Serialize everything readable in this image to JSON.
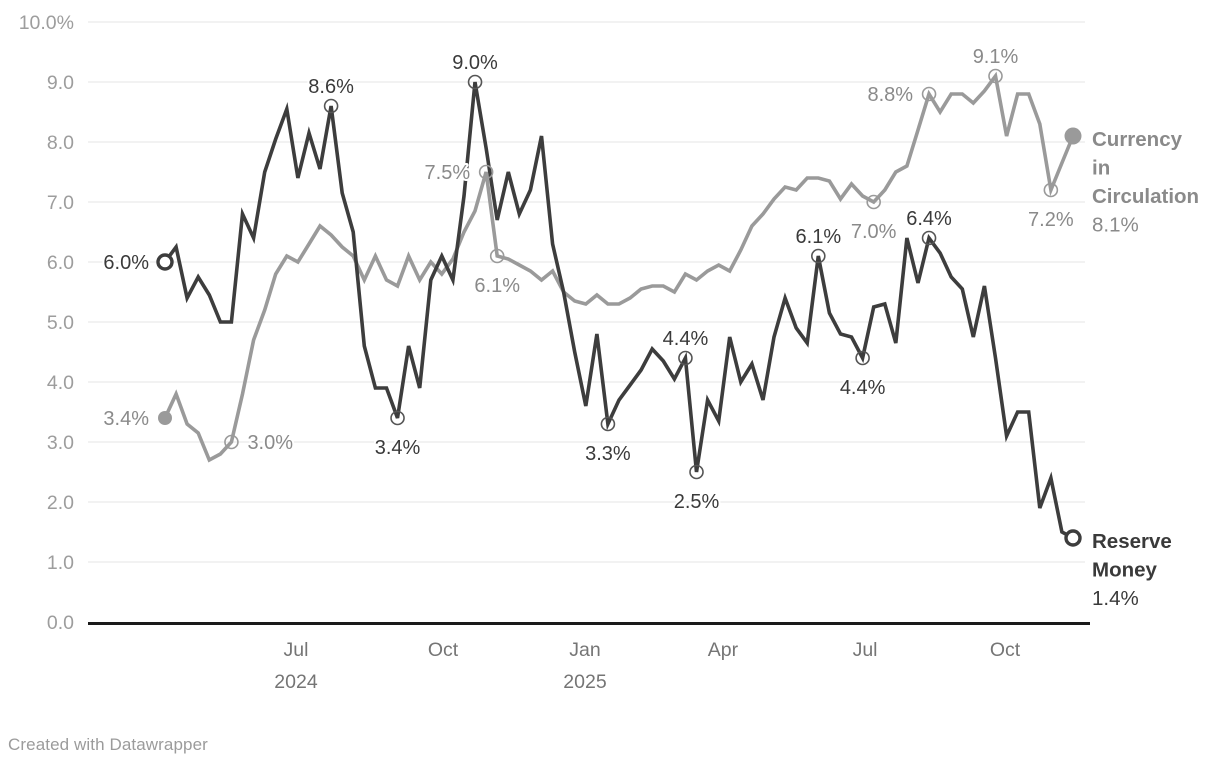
{
  "footer": {
    "credit": "Created with Datawrapper"
  },
  "chart_data": {
    "type": "line",
    "unit": "%",
    "grid": "horizontal",
    "legend_position": "right-of-line-ends",
    "y_axis": {
      "min": 0,
      "max": 10,
      "tick_step": 1,
      "tick_labels": [
        "0.0",
        "1.0",
        "2.0",
        "3.0",
        "4.0",
        "5.0",
        "6.0",
        "7.0",
        "8.0",
        "9.0",
        "10.0%"
      ]
    },
    "x_axis": {
      "start": "mid-Apr 2024",
      "end": "mid-Nov 2025",
      "frequency": "weekly",
      "ticks": [
        {
          "label": "Jul",
          "sublabel": "2024",
          "week": 11.83
        },
        {
          "label": "Oct",
          "week": 25.11
        },
        {
          "label": "Jan",
          "sublabel": "2025",
          "week": 37.93
        },
        {
          "label": "Apr",
          "week": 50.39
        },
        {
          "label": "Jul",
          "week": 63.22
        },
        {
          "label": "Oct",
          "week": 75.86
        }
      ]
    },
    "series": [
      {
        "id": "currency-in-circulation",
        "name": "Currency in Circulation",
        "name_lines": [
          "Currency",
          "in",
          "Circulation"
        ],
        "value_label": "8.1%",
        "color": "#9a9a9a",
        "label_color": "#8a8a8a",
        "ring_color": "#9a9a9a",
        "start_dot": "filled",
        "end_dot": "filled",
        "values": [
          3.4,
          3.8,
          3.3,
          3.15,
          2.7,
          2.8,
          3.0,
          3.8,
          4.7,
          5.2,
          5.8,
          6.1,
          6.0,
          6.3,
          6.6,
          6.45,
          6.25,
          6.1,
          5.7,
          6.1,
          5.7,
          5.6,
          6.1,
          5.7,
          6.0,
          5.8,
          6.05,
          6.5,
          6.85,
          7.5,
          6.1,
          6.05,
          5.95,
          5.85,
          5.7,
          5.85,
          5.5,
          5.35,
          5.3,
          5.45,
          5.3,
          5.3,
          5.4,
          5.55,
          5.6,
          5.6,
          5.5,
          5.8,
          5.7,
          5.85,
          5.95,
          5.85,
          6.2,
          6.6,
          6.8,
          7.05,
          7.25,
          7.2,
          7.4,
          7.4,
          7.35,
          7.05,
          7.3,
          7.1,
          7.0,
          7.2,
          7.5,
          7.6,
          8.2,
          8.8,
          8.5,
          8.8,
          8.8,
          8.65,
          8.85,
          9.1,
          8.1,
          8.8,
          8.8,
          8.3,
          7.2,
          7.65,
          8.1
        ],
        "point_markers": [
          {
            "index": 0,
            "label": "3.4%",
            "side": "left"
          },
          {
            "index": 6,
            "label": "3.0%",
            "side": "right"
          },
          {
            "index": 29,
            "label": "7.5%",
            "side": "left"
          },
          {
            "index": 30,
            "label": "6.1%",
            "side": "below"
          },
          {
            "index": 64,
            "label": "7.0%",
            "side": "below"
          },
          {
            "index": 69,
            "label": "8.8%",
            "side": "left"
          },
          {
            "index": 75,
            "label": "9.1%",
            "side": "above"
          },
          {
            "index": 80,
            "label": "7.2%",
            "side": "below"
          }
        ]
      },
      {
        "id": "reserve-money",
        "name": "Reserve Money",
        "name_lines": [
          "Reserve",
          "Money"
        ],
        "value_label": "1.4%",
        "color": "#3d3d3d",
        "label_color": "#3a3a3a",
        "ring_color": "#555555",
        "start_dot": "open",
        "end_dot": "open",
        "values": [
          6.0,
          6.25,
          5.4,
          5.75,
          5.45,
          5.0,
          5.0,
          6.8,
          6.4,
          7.5,
          8.05,
          8.55,
          7.4,
          8.15,
          7.55,
          8.6,
          7.15,
          6.5,
          4.6,
          3.9,
          3.9,
          3.4,
          4.6,
          3.9,
          5.7,
          6.1,
          5.7,
          7.1,
          9.0,
          7.9,
          6.7,
          7.5,
          6.8,
          7.2,
          8.1,
          6.3,
          5.5,
          4.5,
          3.6,
          4.8,
          3.3,
          3.7,
          3.95,
          4.2,
          4.55,
          4.35,
          4.05,
          4.4,
          2.5,
          3.7,
          3.35,
          4.75,
          4.0,
          4.3,
          3.7,
          4.75,
          5.4,
          4.9,
          4.65,
          6.1,
          5.15,
          4.8,
          4.75,
          4.4,
          5.25,
          5.3,
          4.65,
          6.4,
          5.65,
          6.4,
          6.15,
          5.75,
          5.55,
          4.75,
          5.6,
          4.4,
          3.1,
          3.5,
          3.5,
          1.9,
          2.4,
          1.5,
          1.4
        ],
        "point_markers": [
          {
            "index": 0,
            "label": "6.0%",
            "side": "left"
          },
          {
            "index": 15,
            "label": "8.6%",
            "side": "above"
          },
          {
            "index": 21,
            "label": "3.4%",
            "side": "below"
          },
          {
            "index": 28,
            "label": "9.0%",
            "side": "above"
          },
          {
            "index": 40,
            "label": "3.3%",
            "side": "below"
          },
          {
            "index": 47,
            "label": "4.4%",
            "side": "above"
          },
          {
            "index": 48,
            "label": "2.5%",
            "side": "below"
          },
          {
            "index": 59,
            "label": "6.1%",
            "side": "above"
          },
          {
            "index": 63,
            "label": "4.4%",
            "side": "below"
          },
          {
            "index": 69,
            "label": "6.4%",
            "side": "above"
          }
        ]
      }
    ],
    "style": {
      "grid_color": "#e4e4e4",
      "axis_color": "#1a1a1a",
      "y_tick_color": "#9d9d9d",
      "x_tick_color": "#757575",
      "credit_color": "#9b9b9b",
      "background": "#ffffff"
    }
  }
}
